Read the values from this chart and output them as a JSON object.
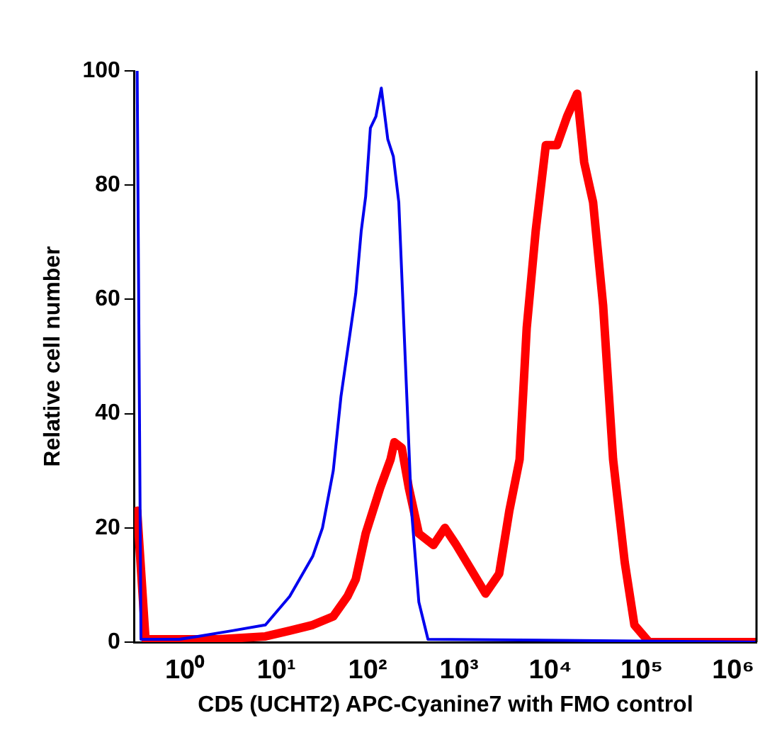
{
  "chart_data": {
    "type": "line",
    "xlabel": "CD5 (UCHT2) APC-Cyanine7 with FMO control",
    "ylabel": "Relative cell number",
    "log": "x",
    "xlim": [
      0.28,
      1800000
    ],
    "xticks": [
      {
        "value": 1,
        "label": "10⁰"
      },
      {
        "value": 10,
        "label": "10¹"
      },
      {
        "value": 100,
        "label": "10²"
      },
      {
        "value": 1000,
        "label": "10³"
      },
      {
        "value": 10000,
        "label": "10⁴"
      },
      {
        "value": 100000,
        "label": "10⁵"
      },
      {
        "value": 1000000,
        "label": "10⁶"
      }
    ],
    "ylim": [
      0,
      100
    ],
    "yticks": [
      0,
      20,
      40,
      60,
      80,
      100
    ],
    "grid": false,
    "legend": false,
    "marker": "none",
    "series": [
      {
        "color": "#0000ee",
        "x": [
          0.3,
          0.33,
          0.87,
          1.38,
          3.3,
          7.6,
          14,
          25,
          32,
          42,
          51,
          74,
          85,
          95,
          107,
          123,
          141,
          166,
          191,
          219,
          257,
          302,
          363,
          457,
          1800000
        ],
        "values": [
          100,
          0.5,
          0.5,
          1,
          2,
          3,
          8,
          15,
          20,
          30,
          43,
          61,
          72,
          78,
          90,
          92,
          97,
          88,
          85,
          77,
          50,
          23,
          7,
          0.5,
          0
        ]
      },
      {
        "color": "#ff0000",
        "x": [
          0.3,
          0.37,
          2.3,
          7.6,
          14,
          25,
          42,
          60,
          74,
          95,
          137,
          178,
          196,
          236,
          282,
          363,
          525,
          700,
          933,
          1950,
          2750,
          3550,
          4600,
          5500,
          6900,
          8900,
          11800,
          15200,
          19600,
          23400,
          29300,
          37700,
          48500,
          65000,
          83000,
          120000,
          1800000
        ],
        "values": [
          23,
          0.5,
          0.5,
          1,
          2,
          3,
          4.5,
          8,
          11,
          19,
          27,
          32,
          35,
          34,
          27,
          19,
          17,
          20,
          17,
          8.5,
          12,
          23,
          32,
          55,
          72,
          87,
          87,
          92,
          96,
          84,
          77,
          59,
          32,
          14,
          3,
          0,
          0
        ]
      }
    ]
  }
}
